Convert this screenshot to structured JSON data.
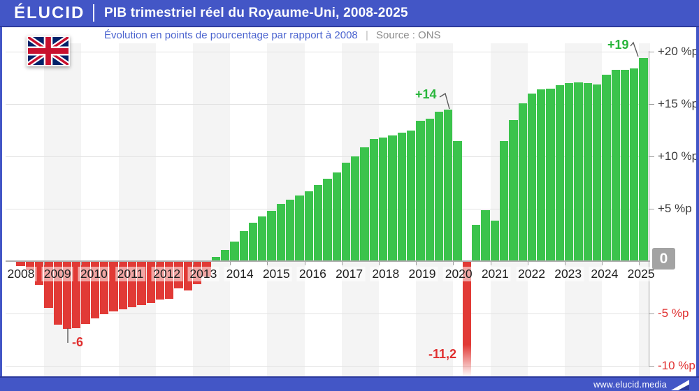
{
  "header": {
    "brand": "ÉLUCID",
    "title": "PIB trimestriel réel du Royaume-Uni, 2008-2025"
  },
  "subtitle": {
    "text": "Évolution en points de pourcentage par rapport à 2008",
    "separator": "|",
    "source": "Source : ONS"
  },
  "footer": {
    "url": "www.elucid.media"
  },
  "colors": {
    "header_bg": "#4356c6",
    "header_line": "#2c3a9c",
    "subtitle": "#4a63cf",
    "muted": "#8c8c8c",
    "green": "#3bc34c",
    "red": "#e13a36",
    "green_text": "#27b53a",
    "red_text": "#e02f2f",
    "grid": "#e2e2e2",
    "axis": "#adadad",
    "band": "#f4f4f4",
    "badge": "#a3a3a3",
    "flag_blue": "#012169",
    "flag_red": "#C8102E"
  },
  "chart_data": {
    "type": "bar",
    "title": "PIB trimestriel réel du Royaume-Uni, 2008-2025",
    "subtitle": "Évolution en points de pourcentage par rapport à 2008",
    "source": "ONS",
    "unit": "points de pourcentage (%p)",
    "frequency": "quarterly",
    "start": "2008-T2",
    "end": "2025-T1",
    "ylim": [
      -11.2,
      20
    ],
    "values": [
      -0.4,
      -0.8,
      -2.2,
      -4.4,
      -6.0,
      -6.4,
      -6.3,
      -5.9,
      -5.4,
      -5.0,
      -4.7,
      -4.5,
      -4.3,
      -4.1,
      -3.9,
      -3.6,
      -3.5,
      -2.5,
      -2.7,
      -2.1,
      -1.4,
      0.4,
      1.1,
      1.9,
      2.9,
      3.7,
      4.3,
      4.8,
      5.5,
      5.9,
      6.3,
      6.7,
      7.3,
      7.9,
      8.5,
      9.4,
      10.0,
      10.9,
      11.7,
      11.8,
      12.0,
      12.3,
      12.5,
      13.4,
      13.6,
      14.3,
      14.5,
      11.5,
      -11.2,
      3.5,
      4.9,
      3.9,
      11.5,
      13.5,
      15.1,
      16.0,
      16.4,
      16.5,
      16.8,
      17.0,
      17.1,
      17.0,
      16.9,
      17.8,
      18.3,
      18.3,
      18.4,
      19.4
    ],
    "year_labels": [
      "2008",
      "2009",
      "2010",
      "2011",
      "2012",
      "2013",
      "2014",
      "2015",
      "2016",
      "2017",
      "2018",
      "2019",
      "2020",
      "2021",
      "2022",
      "2023",
      "2024",
      "2025"
    ],
    "y_ticks": [
      {
        "label": "+20 %p",
        "value": 20
      },
      {
        "label": "+15 %p",
        "value": 15
      },
      {
        "label": "+10 %p",
        "value": 10
      },
      {
        "label": "+5 %p",
        "value": 5
      },
      {
        "label": "-5 %p",
        "value": -5
      },
      {
        "label": "-10 %p",
        "value": -10
      }
    ],
    "zero_label": "0",
    "annotations": [
      {
        "text": "+14",
        "bar": 46
      },
      {
        "text": "+19",
        "bar": 67
      },
      {
        "text": "-6",
        "bar": 5
      },
      {
        "text": "-11,2",
        "bar": 48
      }
    ]
  }
}
